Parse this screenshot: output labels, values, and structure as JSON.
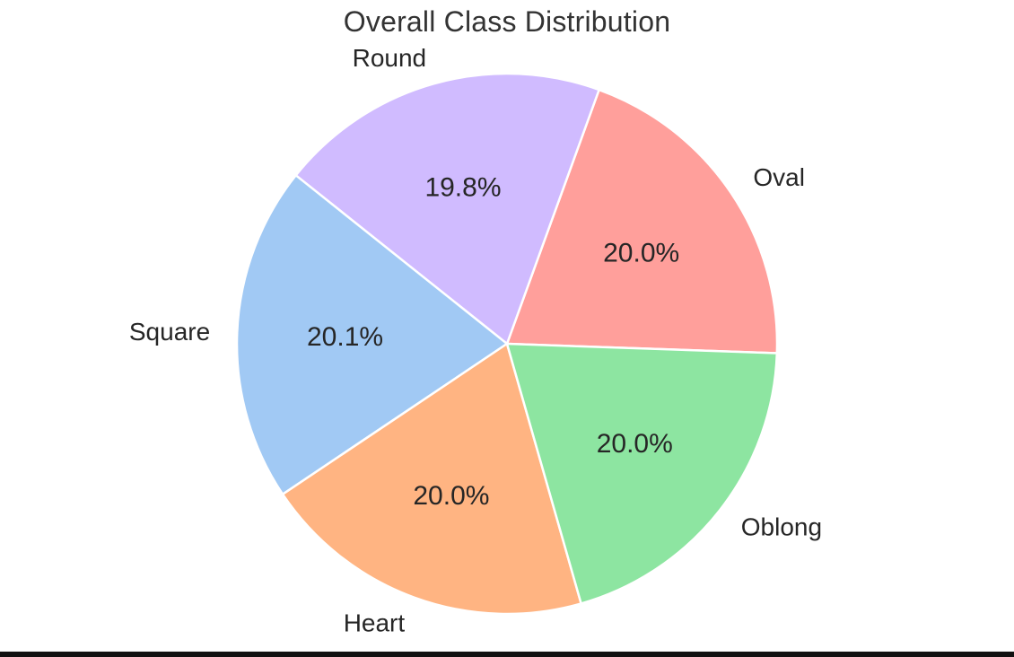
{
  "chart_data": {
    "type": "pie",
    "title": "Overall Class Distribution",
    "slices": [
      {
        "label": "Oval",
        "value": 20.0,
        "pct_label": "20.0%",
        "color": "#ff9f9b"
      },
      {
        "label": "Round",
        "value": 19.8,
        "pct_label": "19.8%",
        "color": "#d0bbff"
      },
      {
        "label": "Square",
        "value": 20.1,
        "pct_label": "20.1%",
        "color": "#a1c9f4"
      },
      {
        "label": "Heart",
        "value": 20.0,
        "pct_label": "20.0%",
        "color": "#ffb482"
      },
      {
        "label": "Oblong",
        "value": 20.0,
        "pct_label": "20.0%",
        "color": "#8de5a1"
      }
    ],
    "legend": "none",
    "grid": false
  }
}
